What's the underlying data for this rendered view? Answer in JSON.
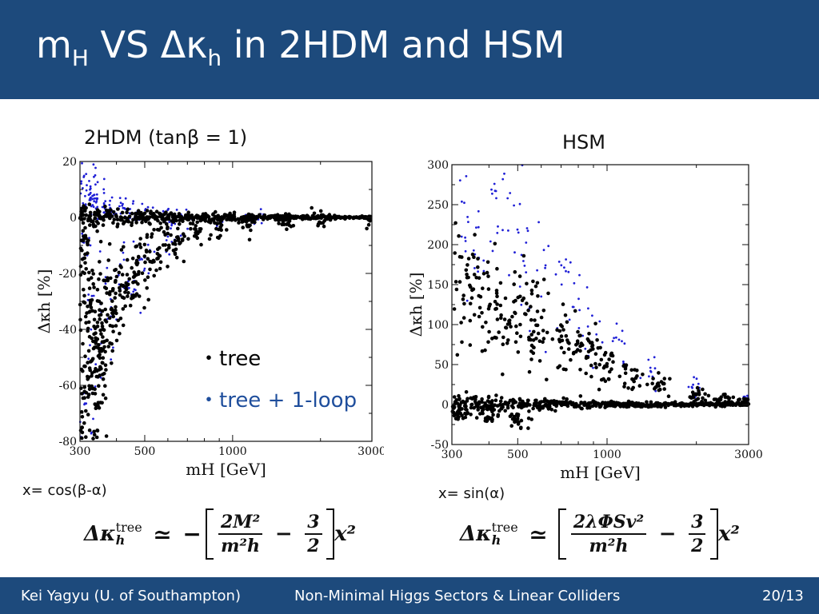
{
  "header": {
    "title_m": "m",
    "title_m_sub": "H",
    "title_vs": " VS Δκ",
    "title_k_sub": "h",
    "title_rest": " in 2HDM and HSM"
  },
  "panels": {
    "left_title": "2HDM (tanβ = 1)",
    "right_title": "HSM"
  },
  "legend": {
    "tree": "・tree",
    "tree_loop": "・tree + 1-loop",
    "tree_color": "#000000",
    "tree_loop_color": "#1f4e9c"
  },
  "definitions": {
    "left": "x= cos(β-α)",
    "right": "x= sin(α)"
  },
  "formulas": {
    "left": {
      "lhs": "Δκ",
      "lhs_sup": "tree",
      "lhs_sub": "h",
      "sym": "≃",
      "sign": "−",
      "frac1_num": "2M²",
      "frac1_den": "m²h",
      "minus": "−",
      "frac2_num": "3",
      "frac2_den": "2",
      "tail": "x²"
    },
    "right": {
      "lhs": "Δκ",
      "lhs_sup": "tree",
      "lhs_sub": "h",
      "sym": "≃",
      "frac1_num": "2λΦSv²",
      "frac1_den": "m²h",
      "minus": "−",
      "frac2_num": "3",
      "frac2_den": "2",
      "tail": "x²"
    }
  },
  "footer": {
    "author": "Kei Yagyu (U. of Southampton)",
    "talk": "Non-Minimal Higgs Sectors & Linear Colliders",
    "page": "20/13"
  },
  "chart_data": [
    {
      "type": "scatter",
      "title": "2HDM (tanβ = 1)",
      "xlabel": "m_H [GeV]",
      "ylabel": "Δκ_h [%]",
      "xscale": "log",
      "xlim": [
        300,
        3000
      ],
      "ylim": [
        -80,
        20
      ],
      "xticks": [
        300,
        500,
        1000,
        3000
      ],
      "yticks": [
        20,
        0,
        -20,
        -40,
        -60,
        -80
      ],
      "series": [
        {
          "name": "tree + 1-loop",
          "color": "#1f1fd6",
          "points": [
            [
              305,
              12
            ],
            [
              310,
              8
            ],
            [
              320,
              11
            ],
            [
              330,
              9
            ],
            [
              340,
              6
            ],
            [
              350,
              7
            ],
            [
              360,
              5
            ],
            [
              380,
              4
            ],
            [
              400,
              3
            ],
            [
              420,
              2.5
            ],
            [
              450,
              2
            ],
            [
              480,
              1.5
            ],
            [
              520,
              1.2
            ],
            [
              600,
              0.8
            ],
            [
              700,
              0.5
            ],
            [
              900,
              0.3
            ],
            [
              1200,
              0.2
            ],
            [
              310,
              -10
            ],
            [
              340,
              -25
            ],
            [
              380,
              -35
            ],
            [
              420,
              -20
            ],
            [
              460,
              -28
            ],
            [
              500,
              -15
            ],
            [
              600,
              -8
            ],
            [
              305,
              -74
            ],
            [
              330,
              -60
            ],
            [
              350,
              -52
            ]
          ]
        },
        {
          "name": "tree",
          "color": "#000000",
          "points": [
            [
              305,
              -5
            ],
            [
              310,
              -15
            ],
            [
              320,
              -30
            ],
            [
              330,
              -45
            ],
            [
              340,
              -55
            ],
            [
              350,
              -48
            ],
            [
              360,
              -40
            ],
            [
              380,
              -35
            ],
            [
              400,
              -30
            ],
            [
              420,
              -25
            ],
            [
              450,
              -20
            ],
            [
              480,
              -18
            ],
            [
              520,
              -14
            ],
            [
              580,
              -10
            ],
            [
              650,
              -8
            ],
            [
              750,
              -5
            ],
            [
              900,
              -3
            ],
            [
              1100,
              -2
            ],
            [
              1500,
              -1
            ],
            [
              2000,
              -0.5
            ],
            [
              3000,
              0
            ],
            [
              305,
              -67
            ],
            [
              320,
              -65
            ],
            [
              340,
              -58
            ],
            [
              360,
              -52
            ]
          ]
        }
      ]
    },
    {
      "type": "scatter",
      "title": "HSM",
      "xlabel": "m_H [GeV]",
      "ylabel": "Δκ_h [%]",
      "xscale": "log",
      "xlim": [
        300,
        3000
      ],
      "ylim": [
        -50,
        300
      ],
      "xticks": [
        300,
        500,
        1000,
        3000
      ],
      "yticks": [
        300,
        250,
        200,
        150,
        100,
        50,
        0,
        -50
      ],
      "series": [
        {
          "name": "tree + 1-loop",
          "color": "#1f1fd6",
          "points": [
            [
              340,
              295
            ],
            [
              420,
              280
            ],
            [
              480,
              270
            ],
            [
              330,
              240
            ],
            [
              380,
              220
            ],
            [
              450,
              200
            ],
            [
              520,
              185
            ],
            [
              600,
              170
            ],
            [
              700,
              150
            ],
            [
              800,
              110
            ],
            [
              900,
              90
            ],
            [
              1100,
              70
            ],
            [
              1400,
              40
            ],
            [
              2000,
              20
            ],
            [
              3000,
              8
            ]
          ]
        },
        {
          "name": "tree",
          "color": "#000000",
          "points": [
            [
              320,
              160
            ],
            [
              360,
              140
            ],
            [
              400,
              130
            ],
            [
              450,
              120
            ],
            [
              500,
              110
            ],
            [
              550,
              100
            ],
            [
              600,
              95
            ],
            [
              700,
              80
            ],
            [
              800,
              70
            ],
            [
              900,
              60
            ],
            [
              1000,
              50
            ],
            [
              1200,
              40
            ],
            [
              1500,
              25
            ],
            [
              2000,
              12
            ],
            [
              2500,
              6
            ],
            [
              3000,
              3
            ],
            [
              320,
              -10
            ],
            [
              400,
              -15
            ],
            [
              500,
              -20
            ]
          ]
        }
      ]
    }
  ]
}
